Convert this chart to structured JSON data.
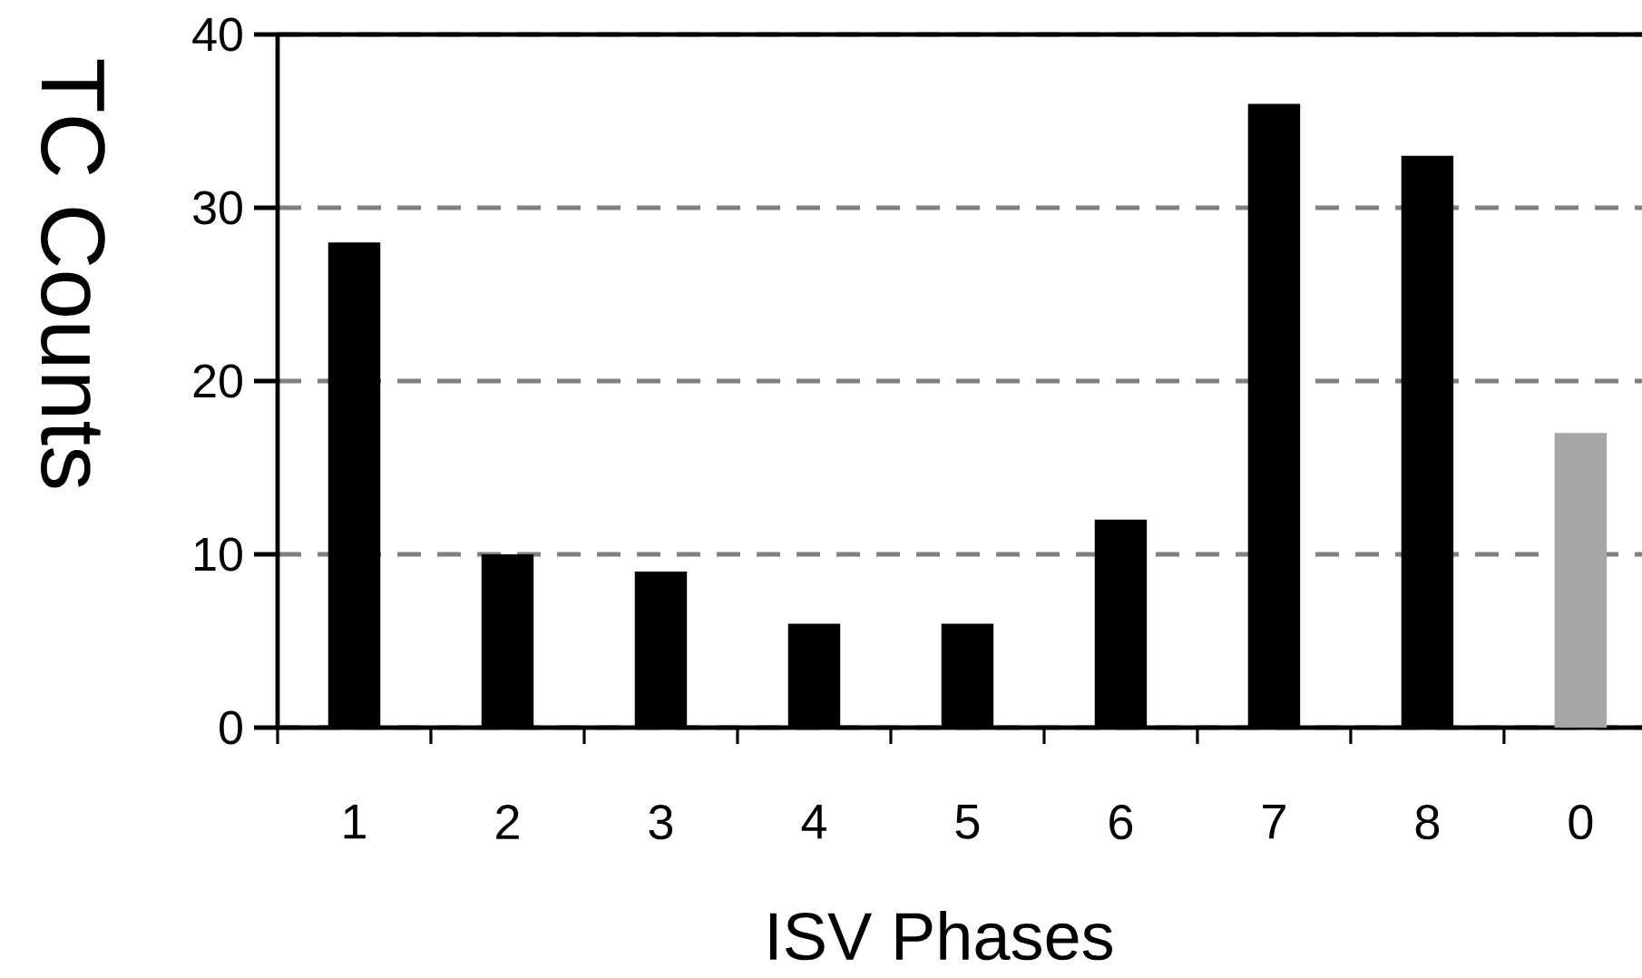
{
  "chart_data": {
    "type": "bar",
    "xlabel": "ISV Phases",
    "ylabel": "TC Counts",
    "categories": [
      "1",
      "2",
      "3",
      "4",
      "5",
      "6",
      "7",
      "8",
      "0"
    ],
    "values": [
      28,
      10,
      9,
      6,
      6,
      12,
      36,
      33,
      17
    ],
    "colors": [
      "#000000",
      "#000000",
      "#000000",
      "#000000",
      "#000000",
      "#000000",
      "#000000",
      "#000000",
      "#a6a6a6"
    ],
    "ylim": [
      0,
      40
    ],
    "yticks": [
      0,
      10,
      20,
      30,
      40
    ],
    "grid": "y"
  }
}
